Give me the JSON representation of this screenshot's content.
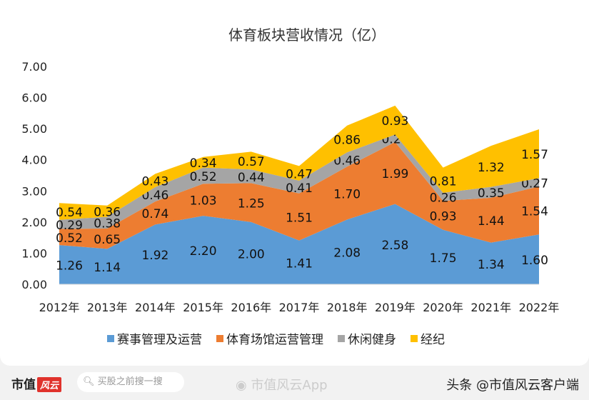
{
  "chart_data": {
    "type": "area",
    "stacked": true,
    "title": "体育板块营收情况（亿）",
    "categories": [
      "2012年",
      "2013年",
      "2014年",
      "2015年",
      "2016年",
      "2017年",
      "2018年",
      "2019年",
      "2020年",
      "2021年",
      "2022年"
    ],
    "ylim": [
      0,
      7
    ],
    "yticks": [
      "0.00",
      "1.00",
      "2.00",
      "3.00",
      "4.00",
      "5.00",
      "6.00",
      "7.00"
    ],
    "grid": false,
    "legend_position": "bottom",
    "series": [
      {
        "name": "赛事管理及运营",
        "color": "#5b9bd5",
        "values": [
          1.26,
          1.14,
          1.92,
          2.2,
          2.0,
          1.41,
          2.08,
          2.58,
          1.75,
          1.34,
          1.6
        ]
      },
      {
        "name": "体育场馆运营管理",
        "color": "#ed7d31",
        "values": [
          0.52,
          0.65,
          0.74,
          1.03,
          1.25,
          1.51,
          1.7,
          1.99,
          0.93,
          1.44,
          1.54
        ]
      },
      {
        "name": "休闲健身",
        "color": "#a5a5a5",
        "values": [
          0.29,
          0.38,
          0.46,
          0.52,
          0.44,
          0.41,
          0.46,
          0.24,
          0.26,
          0.35,
          0.27
        ]
      },
      {
        "name": "经纪",
        "color": "#ffc000",
        "values": [
          0.54,
          0.36,
          0.43,
          0.34,
          0.57,
          0.47,
          0.86,
          0.93,
          0.81,
          1.32,
          1.57
        ]
      }
    ]
  },
  "footer": {
    "logo": "市值",
    "logo_mark": "风云",
    "search_placeholder": "买股之前搜一搜",
    "weibo": "市值风云App",
    "toutiao": "头条 @市值风云客户端"
  }
}
